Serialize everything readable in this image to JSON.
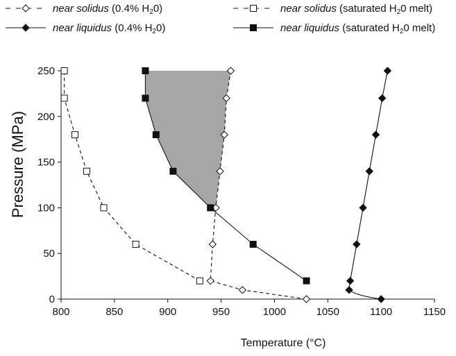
{
  "chart_data": {
    "type": "line",
    "xlabel": "Temperature (°C)",
    "ylabel": "Pressure (MPa)",
    "xlim": [
      800,
      1150
    ],
    "ylim": [
      0,
      250
    ],
    "xticks": [
      800,
      850,
      900,
      950,
      1000,
      1050,
      1100,
      1150
    ],
    "yticks": [
      0,
      50,
      100,
      150,
      200,
      250
    ],
    "grid": false,
    "legend_position": "top",
    "shaded_region": {
      "fill": "#a6a6a6",
      "between": [
        "near liquidus (saturated H2O melt)",
        "near solidus (0.4% H2O)"
      ],
      "y_range": [
        100,
        250
      ]
    },
    "series": [
      {
        "id": "sol04",
        "legend": {
          "italic": "near solidus",
          "rest": " (0.4% H",
          "sub": "2",
          "tail": "0)"
        },
        "marker": "diamond-open",
        "dash": "dashed",
        "points": [
          [
            1030,
            0
          ],
          [
            970,
            10
          ],
          [
            940,
            20
          ],
          [
            942,
            60
          ],
          [
            945,
            100
          ],
          [
            949,
            140
          ],
          [
            953,
            180
          ],
          [
            955,
            220
          ],
          [
            959,
            250
          ]
        ]
      },
      {
        "id": "liq04",
        "legend": {
          "italic": "near liquidus",
          "rest": " (0.4% H",
          "sub": "2",
          "tail": "0)"
        },
        "marker": "diamond-filled",
        "dash": "solid",
        "points": [
          [
            1100,
            0
          ],
          [
            1070,
            10
          ],
          [
            1071,
            20
          ],
          [
            1077,
            60
          ],
          [
            1083,
            100
          ],
          [
            1089,
            140
          ],
          [
            1095,
            180
          ],
          [
            1101,
            220
          ],
          [
            1106,
            250
          ]
        ]
      },
      {
        "id": "solsat",
        "legend": {
          "italic": "near solidus",
          "rest": " (saturated H",
          "sub": "2",
          "tail": "0 melt)"
        },
        "marker": "square-open",
        "dash": "dashed",
        "points": [
          [
            930,
            20
          ],
          [
            870,
            60
          ],
          [
            840,
            100
          ],
          [
            824,
            140
          ],
          [
            813,
            180
          ],
          [
            803,
            220
          ],
          [
            803,
            250
          ]
        ]
      },
      {
        "id": "liqsat",
        "legend": {
          "italic": "near liquidus",
          "rest": " (saturated H",
          "sub": "2",
          "tail": "0 melt)"
        },
        "marker": "square-filled",
        "dash": "solid",
        "points": [
          [
            1030,
            20
          ],
          [
            980,
            60
          ],
          [
            940,
            100
          ],
          [
            905,
            140
          ],
          [
            889,
            180
          ],
          [
            879,
            220
          ],
          [
            879,
            250
          ]
        ]
      }
    ]
  }
}
